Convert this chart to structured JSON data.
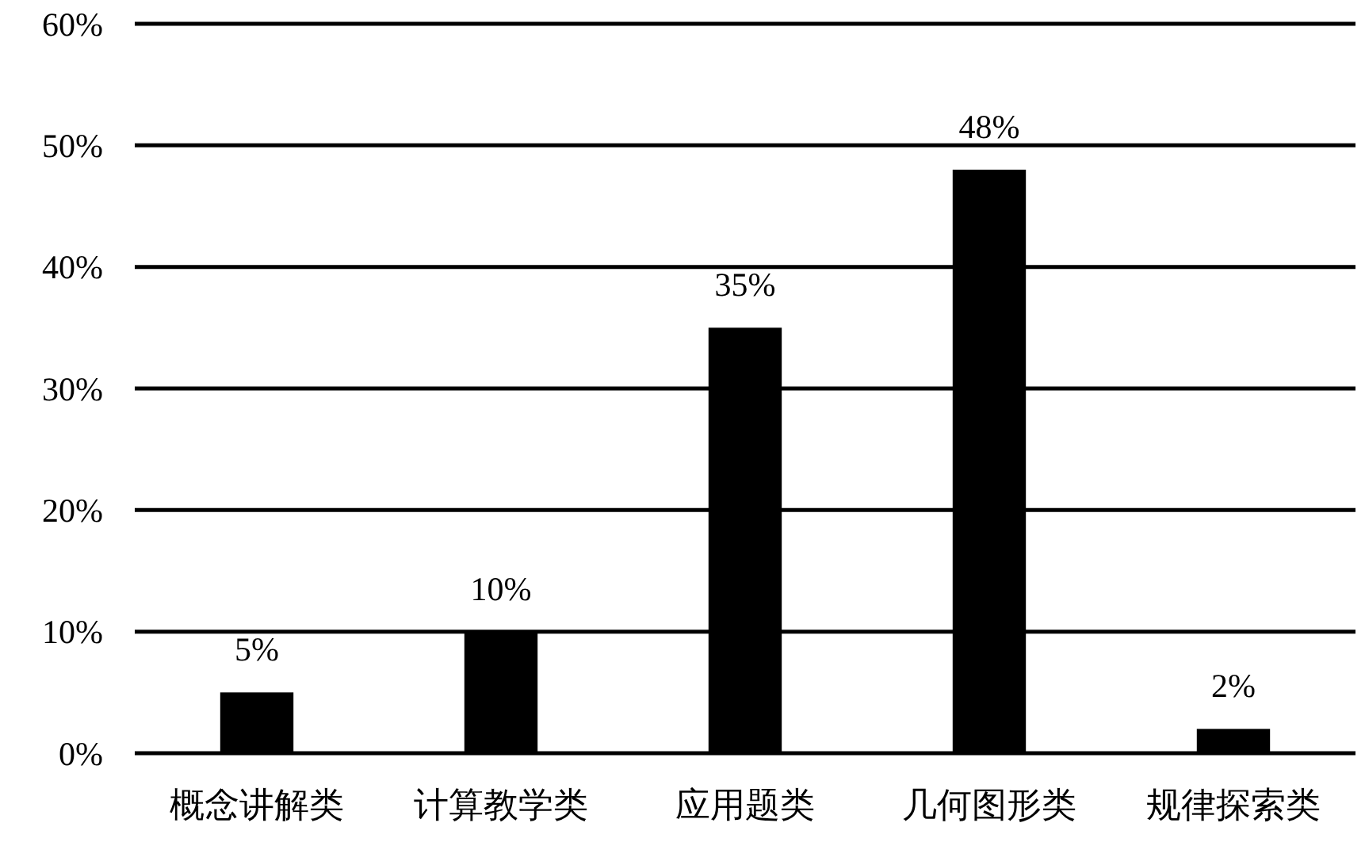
{
  "chart_data": {
    "type": "bar",
    "categories": [
      "概念讲解类",
      "计算教学类",
      "应用题类",
      "几何图形类",
      "规律探索类"
    ],
    "values": [
      5,
      10,
      35,
      48,
      2
    ],
    "value_labels": [
      "5%",
      "10%",
      "35%",
      "48%",
      "2%"
    ],
    "color": "#000000",
    "ylim": [
      0,
      60
    ],
    "yticks": [
      {
        "value": 0,
        "label": "0%"
      },
      {
        "value": 10,
        "label": "10%"
      },
      {
        "value": 20,
        "label": "20%"
      },
      {
        "value": 30,
        "label": "30%"
      },
      {
        "value": 40,
        "label": "40%"
      },
      {
        "value": 50,
        "label": "50%"
      },
      {
        "value": 60,
        "label": "60%"
      }
    ],
    "grid": "y"
  }
}
